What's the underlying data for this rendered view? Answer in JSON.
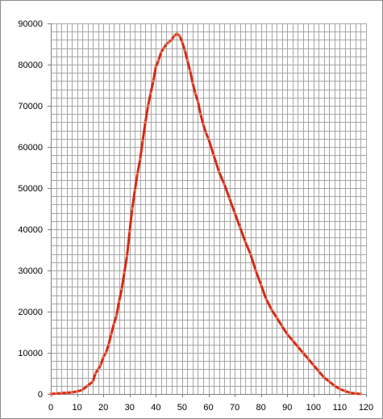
{
  "chart_data": {
    "type": "line",
    "title": "",
    "xlabel": "",
    "ylabel": "",
    "xlim": [
      0,
      120
    ],
    "ylim": [
      0,
      90000
    ],
    "x_ticks": [
      0,
      10,
      20,
      30,
      40,
      50,
      60,
      70,
      80,
      90,
      100,
      110,
      120
    ],
    "x_tick_labels": [
      "0",
      "10",
      "20",
      "30",
      "40",
      "50",
      "60",
      "70",
      "80",
      "90",
      "100",
      "110",
      "120"
    ],
    "y_ticks": [
      0,
      10000,
      20000,
      30000,
      40000,
      50000,
      60000,
      70000,
      80000,
      90000
    ],
    "y_tick_labels": [
      "0",
      "10000",
      "20000",
      "30000",
      "40000",
      "50000",
      "60000",
      "70000",
      "80000",
      "90000"
    ],
    "grid": true,
    "legend": "none",
    "colors": {
      "line": "#d42a14",
      "grid": "#a6a6a6",
      "axis": "#808080",
      "background": "#ffffff"
    },
    "series": [
      {
        "x": [
          0,
          2,
          4,
          6,
          8,
          10,
          12,
          14,
          16,
          17,
          18,
          19,
          20,
          21,
          22,
          23,
          24,
          25,
          26,
          27,
          28,
          29,
          30,
          31,
          32,
          33,
          34,
          35,
          36,
          37,
          38,
          39,
          40,
          41,
          42,
          43,
          44,
          45,
          46,
          47,
          48,
          49,
          50,
          51,
          52,
          53,
          54,
          55,
          56,
          57,
          58,
          59,
          60,
          62,
          64,
          66,
          68,
          70,
          72,
          74,
          76,
          78,
          80,
          82,
          84,
          86,
          88,
          90,
          92,
          94,
          96,
          98,
          100,
          102,
          104,
          106,
          108,
          110,
          112,
          114,
          116,
          118
        ],
        "values": [
          0,
          100,
          200,
          300,
          400,
          600,
          1000,
          2000,
          3000,
          5000,
          6000,
          7000,
          9000,
          10000,
          12000,
          14500,
          17000,
          19000,
          22500,
          25500,
          29500,
          33500,
          39500,
          45000,
          49500,
          53500,
          57000,
          61500,
          66000,
          70000,
          73000,
          76000,
          79500,
          81000,
          83000,
          84000,
          85000,
          85500,
          86000,
          87000,
          87500,
          87000,
          85500,
          83500,
          81000,
          78500,
          75500,
          73000,
          71000,
          68000,
          65500,
          63500,
          62000,
          58000,
          54000,
          51000,
          47500,
          44000,
          40500,
          37000,
          34000,
          30000,
          26500,
          23000,
          20500,
          18500,
          16500,
          14500,
          13000,
          11500,
          10000,
          8500,
          7000,
          5500,
          4000,
          3000,
          2000,
          1200,
          700,
          300,
          100,
          0
        ]
      }
    ]
  }
}
